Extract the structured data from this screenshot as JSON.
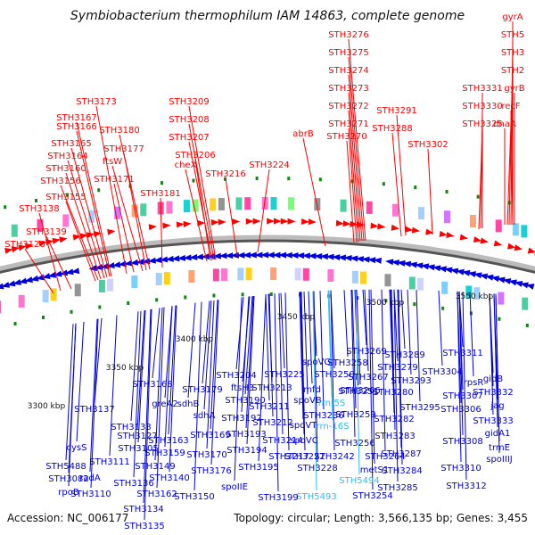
{
  "title": "Symbiobacterium thermophilum IAM 14863, complete genome",
  "footer": {
    "accession": "Accession: NC_006177",
    "summary": "Topology: circular; Length: 3,566,135 bp; Genes: 3,455"
  },
  "colors": {
    "forward": "#ff0000",
    "reverse": "#0000dd",
    "rna": "#33bbee",
    "backbone": "#555555",
    "tick": "#118811"
  },
  "kbp_labels": [
    "3300 kbp",
    "3350 kbp",
    "3400 kbp",
    "3450 kbp",
    "3500 kbp",
    "3550 kbp"
  ],
  "top_labels": [
    "gyrA",
    "STH5",
    "STH3",
    "STH2",
    "gyrB",
    "recF",
    "dnaA",
    "STH3331",
    "STH3330",
    "STH3325",
    "STH3302",
    "STH3291",
    "STH3288",
    "STH3276",
    "STH3275",
    "STH3274",
    "STH3273",
    "STH3272",
    "STH3271",
    "STH3270",
    "abrB",
    "STH3224",
    "STH3209",
    "STH3208",
    "STH3207",
    "STH3206",
    "cheX",
    "STH3216",
    "STH3173",
    "STH3167",
    "STH3166",
    "STH3180",
    "STH3177",
    "ftsW",
    "STH3165",
    "STH3164",
    "STH3160",
    "STH3156",
    "STH3171",
    "STH3155",
    "STH3181",
    "STH3138",
    "STH3139",
    "STH3126"
  ],
  "bottom_labels": [
    "gidB",
    "STH3332",
    "jag",
    "STH3333",
    "gidA1",
    "trmE",
    "spoIIIJ",
    "STH3311",
    "STH3304",
    "rpsR",
    "STH3307",
    "STH3306",
    "STH3308",
    "STH3310",
    "STH3312",
    "STH3289",
    "STH3279",
    "STH3293",
    "STH3280",
    "STH3295",
    "STH3282",
    "STH3283",
    "STH3287",
    "STH3284",
    "STH3285",
    "STH3269",
    "STH3258",
    "STH3267",
    "STH3266",
    "STH3264",
    "STH3254",
    "spoVG",
    "STH3250",
    "STH3225",
    "mfd",
    "spoVB",
    "rrn-5S",
    "STH3251",
    "STH3236",
    "STH3259",
    "spoVT",
    "rrn-16S",
    "STH3256",
    "spoVC",
    "STH3242",
    "metS1",
    "STH3222",
    "STH5494",
    "STH5493",
    "STH3228",
    "STH3217",
    "STH3214",
    "STH3212",
    "STH3211",
    "STH3213",
    "STH3204",
    "ftsH3",
    "STH3190",
    "STH3179",
    "STH3192",
    "STH3193",
    "STH3194",
    "STH3195",
    "STH3199",
    "spoIIE",
    "STH3176",
    "STH3170",
    "STH3169",
    "sdhA",
    "sdhB",
    "STH3168",
    "greA2",
    "STH3163",
    "STH3159",
    "STH3149",
    "STH3140",
    "STH3150",
    "STH3162",
    "STH3134",
    "STH3135",
    "STH3136",
    "radA",
    "STH3110",
    "STH3111",
    "STH3105",
    "STH3127",
    "STH3133",
    "STH3137",
    "cysS",
    "STH5488",
    "STH3082",
    "rpoB",
    "STH3078"
  ]
}
